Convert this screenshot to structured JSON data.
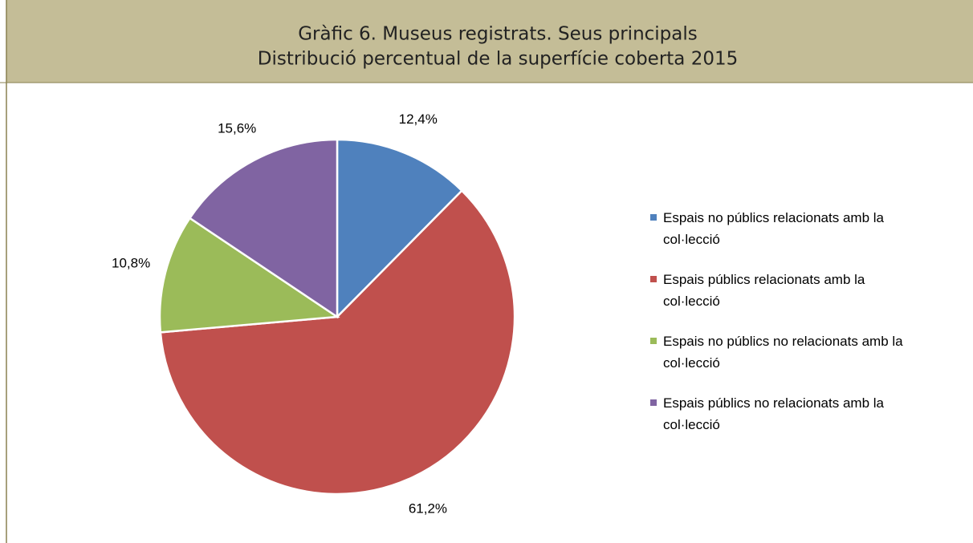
{
  "chart_data": {
    "type": "pie",
    "title": "Gràfic 6. Museus registrats. Seus principals",
    "subtitle": "Distribució percentual de la superfície coberta 2015",
    "categories": [
      "Espais no públics relacionats amb la col·lecció",
      "Espais públics relacionats amb la col·lecció",
      "Espais no públics no relacionats amb la col·lecció",
      "Espais públics no relacionats amb la col·lecció"
    ],
    "values": [
      12.4,
      61.2,
      10.8,
      15.6
    ],
    "value_labels": [
      "12,4%",
      "61,2%",
      "10,8%",
      "15,6%"
    ],
    "colors": [
      "#4f81bd",
      "#c0504d",
      "#9bbb59",
      "#8064a2"
    ],
    "legend": "right"
  }
}
